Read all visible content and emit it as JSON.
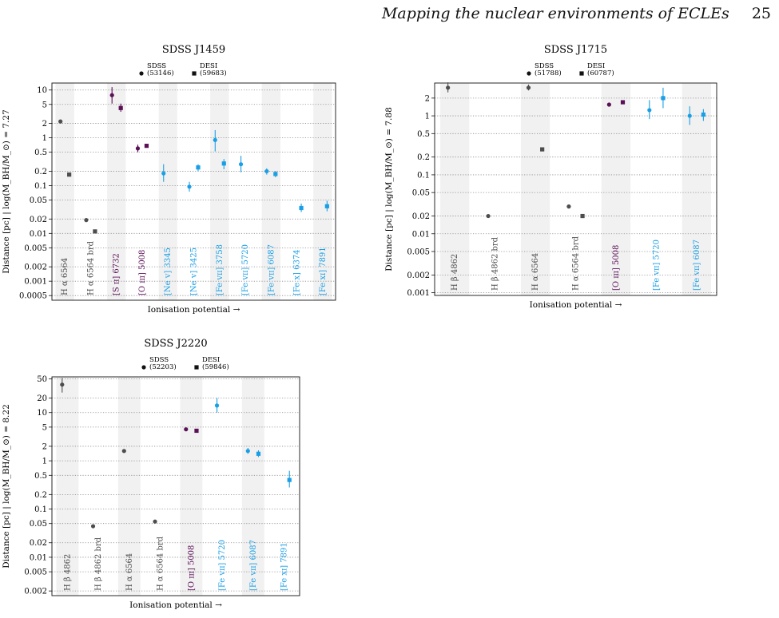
{
  "page": {
    "running_title": "Mapping the nuclear environments of ECLEs",
    "page_number": "25"
  },
  "colors": {
    "balmer": "#4d4d4d",
    "sulphur_oxygen": "#5b0f57",
    "coronal": "#1a9fe6",
    "band": "#f1f1f1",
    "grid": "#8a8a8a"
  },
  "chart_data": [
    {
      "type": "scatter",
      "title": "SDSS J1459",
      "ylabel": "Distance [pc] | log(M_BH/M_⊙) = 7.27",
      "xlabel": "Ionisation potential →",
      "yscale": "log",
      "ylim": [
        0.0004,
        14
      ],
      "yticks": [
        10,
        5,
        2,
        1,
        0.5,
        0.2,
        0.1,
        0.05,
        0.02,
        0.01,
        0.005,
        0.002,
        0.001,
        0.0005
      ],
      "ytick_labels": [
        "10",
        "5",
        "2",
        "1",
        "0.5",
        "0.2",
        "0.1",
        "0.05",
        "0.02",
        "0.01",
        "0.005",
        "0.002",
        "0.001",
        "0.0005"
      ],
      "grid": "horizontal dotted",
      "legend": {
        "placement": "top-center",
        "entries": [
          {
            "marker": "circle",
            "label": "SDSS",
            "epoch": "(53146)"
          },
          {
            "marker": "square",
            "label": "DESI",
            "epoch": "(59683)"
          }
        ]
      },
      "lines": [
        {
          "label": "H α 6564",
          "group": "balmer",
          "sdss": {
            "y": 2.2
          },
          "desi": {
            "y": 0.17
          }
        },
        {
          "label": "H α 6564 brd",
          "group": "balmer",
          "sdss": {
            "y": 0.019
          },
          "desi": {
            "y": 0.011
          }
        },
        {
          "label": "[S ɪɪ] 6732",
          "group": "sulphur_oxygen",
          "sdss": {
            "y": 7.8,
            "ylo": 5.2,
            "yhi": 11.5
          },
          "desi": {
            "y": 4.2,
            "ylo": 3.5,
            "yhi": 5.2
          }
        },
        {
          "label": "[O ɪɪɪ] 5008",
          "group": "sulphur_oxygen",
          "sdss": {
            "y": 0.6,
            "ylo": 0.5,
            "yhi": 0.72
          },
          "desi": {
            "y": 0.68
          }
        },
        {
          "label": "[Ne ᴠ] 3345",
          "group": "coronal",
          "sdss": {
            "y": 0.18,
            "ylo": 0.12,
            "yhi": 0.28
          },
          "desi": null
        },
        {
          "label": "[Ne ᴠ] 3425",
          "group": "coronal",
          "sdss": {
            "y": 0.095,
            "ylo": 0.075,
            "yhi": 0.12
          },
          "desi": {
            "y": 0.24,
            "ylo": 0.2,
            "yhi": 0.28
          }
        },
        {
          "label": "[Fe ᴠɪɪ] 3758",
          "group": "coronal",
          "sdss": {
            "y": 0.9,
            "ylo": 0.52,
            "yhi": 1.45
          },
          "desi": {
            "y": 0.29,
            "ylo": 0.22,
            "yhi": 0.36
          }
        },
        {
          "label": "[Fe ᴠɪɪ] 5720",
          "group": "coronal",
          "sdss": {
            "y": 0.28,
            "ylo": 0.19,
            "yhi": 0.42
          },
          "desi": null
        },
        {
          "label": "[Fe ᴠɪɪ] 6087",
          "group": "coronal",
          "sdss": {
            "y": 0.2,
            "ylo": 0.17,
            "yhi": 0.23
          },
          "desi": {
            "y": 0.175,
            "ylo": 0.15,
            "yhi": 0.2
          }
        },
        {
          "label": "[Fe x] 6374",
          "group": "coronal",
          "sdss": null,
          "desi": {
            "y": 0.034,
            "ylo": 0.028,
            "yhi": 0.042
          }
        },
        {
          "label": "[Fe xɪ] 7891",
          "group": "coronal",
          "sdss": null,
          "desi": {
            "y": 0.037,
            "ylo": 0.029,
            "yhi": 0.048
          }
        }
      ]
    },
    {
      "type": "scatter",
      "title": "SDSS J1715",
      "ylabel": "Distance [pc] | log(M_BH/M_⊙) = 7.88",
      "xlabel": "Ionisation potential →",
      "yscale": "log",
      "ylim": [
        0.0009,
        3.6
      ],
      "yticks": [
        2,
        1,
        0.5,
        0.2,
        0.1,
        0.05,
        0.02,
        0.01,
        0.005,
        0.002,
        0.001
      ],
      "ytick_labels": [
        "2",
        "1",
        "0.5",
        "0.2",
        "0.1",
        "0.05",
        "0.02",
        "0.01",
        "0.005",
        "0.002",
        "0.001"
      ],
      "grid": "horizontal dotted",
      "legend": {
        "placement": "top-center",
        "entries": [
          {
            "marker": "circle",
            "label": "SDSS",
            "epoch": "(51788)"
          },
          {
            "marker": "square",
            "label": "DESI",
            "epoch": "(60787)"
          }
        ]
      },
      "lines": [
        {
          "label": "H β 4862",
          "group": "balmer",
          "sdss": {
            "y": 3.0,
            "ylo": 2.5,
            "yhi": 3.7
          },
          "desi": null
        },
        {
          "label": "H β 4862 brd",
          "group": "balmer",
          "sdss": {
            "y": 0.02
          },
          "desi": null
        },
        {
          "label": "H α 6564",
          "group": "balmer",
          "sdss": {
            "y": 3.0,
            "ylo": 2.7,
            "yhi": 3.4
          },
          "desi": {
            "y": 0.27
          }
        },
        {
          "label": "H α 6564 brd",
          "group": "balmer",
          "sdss": {
            "y": 0.029
          },
          "desi": {
            "y": 0.02
          }
        },
        {
          "label": "[O ɪɪɪ] 5008",
          "group": "sulphur_oxygen",
          "sdss": {
            "y": 1.55
          },
          "desi": {
            "y": 1.7
          }
        },
        {
          "label": "[Fe ᴠɪɪ] 5720",
          "group": "coronal",
          "sdss": {
            "y": 1.25,
            "ylo": 0.88,
            "yhi": 1.85
          },
          "desi": {
            "y": 2.0,
            "ylo": 1.35,
            "yhi": 3.0
          }
        },
        {
          "label": "[Fe ᴠɪɪ] 6087",
          "group": "coronal",
          "sdss": {
            "y": 1.0,
            "ylo": 0.7,
            "yhi": 1.45
          },
          "desi": {
            "y": 1.05,
            "ylo": 0.82,
            "yhi": 1.3
          }
        }
      ]
    },
    {
      "type": "scatter",
      "title": "SDSS J2220",
      "ylabel": "Distance [pc] | log(M_BH/M_⊙) = 8.22",
      "xlabel": "Ionisation potential →",
      "yscale": "log",
      "ylim": [
        0.0016,
        55
      ],
      "yticks": [
        50,
        20,
        10,
        5,
        2,
        1,
        0.5,
        0.2,
        0.1,
        0.05,
        0.02,
        0.01,
        0.005,
        0.002
      ],
      "ytick_labels": [
        "50",
        "20",
        "10",
        "5",
        "2",
        "1",
        "0.5",
        "0.2",
        "0.1",
        "0.05",
        "0.02",
        "0.01",
        "0.005",
        "0.002"
      ],
      "grid": "horizontal dotted",
      "legend": {
        "placement": "top-center",
        "entries": [
          {
            "marker": "circle",
            "label": "SDSS",
            "epoch": "(52203)"
          },
          {
            "marker": "square",
            "label": "DESI",
            "epoch": "(59846)"
          }
        ]
      },
      "lines": [
        {
          "label": "H β 4862",
          "group": "balmer",
          "sdss": {
            "y": 38,
            "ylo": 26,
            "yhi": 52
          },
          "desi": null
        },
        {
          "label": "H β 4862 brd",
          "group": "balmer",
          "sdss": {
            "y": 0.044
          },
          "desi": null
        },
        {
          "label": "H α 6564",
          "group": "balmer",
          "sdss": {
            "y": 1.6
          },
          "desi": null
        },
        {
          "label": "H α 6564 brd",
          "group": "balmer",
          "sdss": {
            "y": 0.055
          },
          "desi": null
        },
        {
          "label": "[O ɪɪɪ] 5008",
          "group": "sulphur_oxygen",
          "sdss": {
            "y": 4.5
          },
          "desi": {
            "y": 4.2
          }
        },
        {
          "label": "[Fe ᴠɪɪ] 5720",
          "group": "coronal",
          "sdss": {
            "y": 14,
            "ylo": 10,
            "yhi": 20
          },
          "desi": null
        },
        {
          "label": "[Fe ᴠɪɪ] 6087",
          "group": "coronal",
          "sdss": {
            "y": 1.6,
            "ylo": 1.4,
            "yhi": 1.85
          },
          "desi": {
            "y": 1.4,
            "ylo": 1.2,
            "yhi": 1.65
          }
        },
        {
          "label": "[Fe xɪ] 7891",
          "group": "coronal",
          "sdss": null,
          "desi": {
            "y": 0.4,
            "ylo": 0.28,
            "yhi": 0.62
          }
        }
      ]
    }
  ]
}
